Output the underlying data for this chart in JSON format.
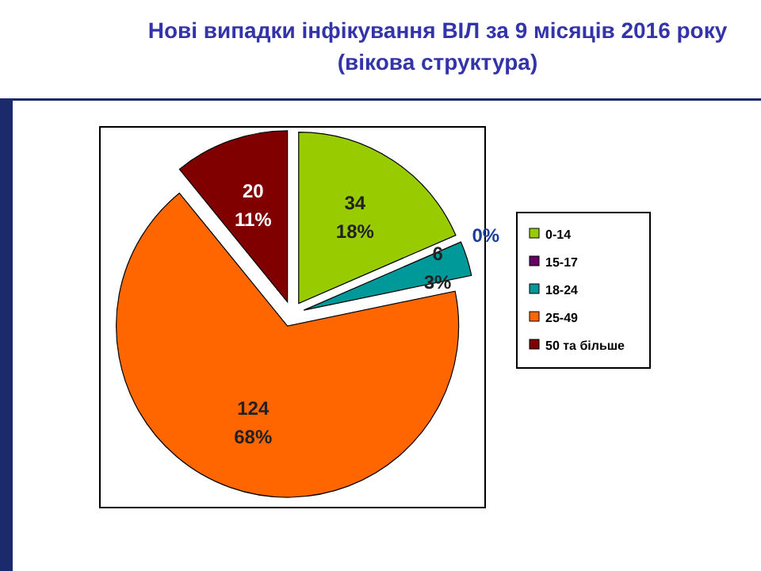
{
  "chart_data": {
    "type": "pie",
    "title": "Нові випадки інфікування ВІЛ за 9 місяців 2016 року\n(вікова структура)",
    "categories": [
      "0-14",
      "15-17",
      "18-24",
      "25-49",
      "50 та більше"
    ],
    "values": [
      34,
      0,
      6,
      124,
      20
    ],
    "colors": [
      "#99cc00",
      "#660066",
      "#009999",
      "#ff6600",
      "#800000"
    ],
    "value_labels": [
      "34\n18%",
      "0%",
      "6\n3%",
      "124\n68%",
      "20\n11%"
    ],
    "legend": "right"
  }
}
